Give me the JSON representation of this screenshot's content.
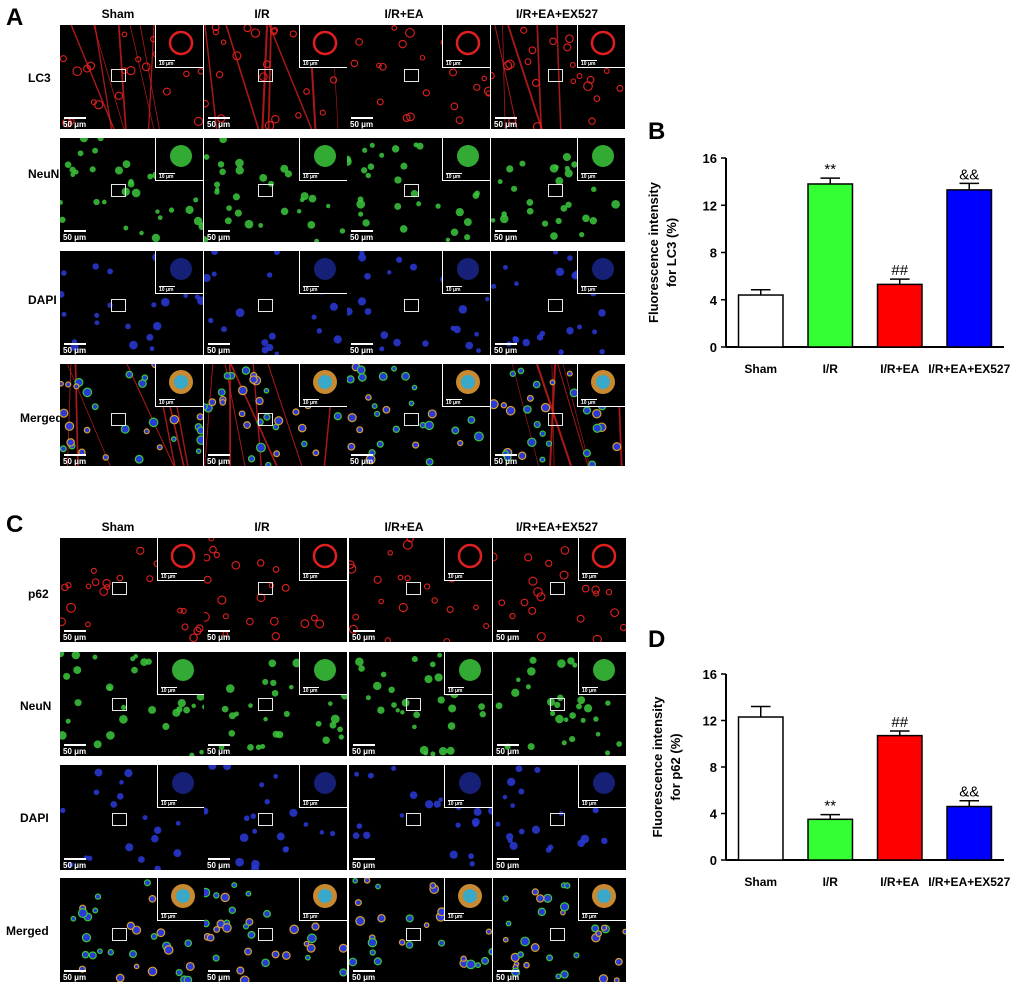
{
  "figure": {
    "panel_letters": [
      "A",
      "B",
      "C",
      "D"
    ],
    "groups": [
      "Sham",
      "I/R",
      "I/R+EA",
      "I/R+EA+EX527"
    ],
    "scale_main": "50 μm",
    "scale_inset": "10 μm",
    "panel_A": {
      "rows": [
        "LC3",
        "NeuN",
        "DAPI",
        "Merged"
      ]
    },
    "panel_C": {
      "rows": [
        "p62",
        "NeuN",
        "DAPI",
        "Merged"
      ]
    },
    "colors": {
      "red_stain": "#e02020",
      "green_stain": "#3cc83c",
      "blue_stain": "#2a3ad8"
    }
  },
  "chart_data": [
    {
      "panel": "B",
      "type": "bar",
      "categories": [
        "Sham",
        "I/R",
        "I/R+EA",
        "I/R+EA+EX527"
      ],
      "values": [
        4.4,
        13.8,
        5.3,
        13.3
      ],
      "errors": [
        0.45,
        0.5,
        0.45,
        0.55
      ],
      "bar_colors": [
        "#ffffff",
        "#33ff33",
        "#ff0000",
        "#0000ff"
      ],
      "annotations": [
        "",
        "**",
        "##",
        "&&"
      ],
      "ylabel_line1": "Fluorescence intensity",
      "ylabel_line2": "for LC3 (%)",
      "yticks": [
        "0",
        "4",
        "8",
        "12",
        "16"
      ],
      "ylim": [
        0,
        16
      ]
    },
    {
      "panel": "D",
      "type": "bar",
      "categories": [
        "Sham",
        "I/R",
        "I/R+EA",
        "I/R+EA+EX527"
      ],
      "values": [
        12.3,
        3.5,
        10.7,
        4.6
      ],
      "errors": [
        0.9,
        0.4,
        0.4,
        0.5
      ],
      "bar_colors": [
        "#ffffff",
        "#33ff33",
        "#ff0000",
        "#0000ff"
      ],
      "annotations": [
        "",
        "**",
        "##",
        "&&"
      ],
      "ylabel_line1": "Fluorescence intensity",
      "ylabel_line2": "for p62 (%)",
      "yticks": [
        "0",
        "4",
        "8",
        "12",
        "16"
      ],
      "ylim": [
        0,
        16
      ]
    }
  ]
}
